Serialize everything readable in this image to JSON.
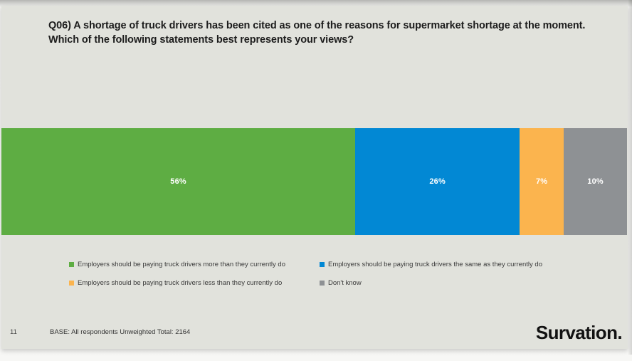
{
  "slide": {
    "title": "Q06) A shortage of truck drivers has been cited as one of the reasons for supermarket shortage at the moment. Which of the following statements best represents your views?",
    "page_number": "11",
    "base_note": "BASE: All respondents Unweighted Total: 2164",
    "logo_text": "Survation."
  },
  "colors": {
    "slide_background": "#e1e2dc",
    "bar_green": "#5ead43",
    "bar_blue": "#0288d4",
    "bar_orange": "#fbb44e",
    "bar_gray": "#8e9194",
    "value_label": "#ffffff",
    "title_text": "#1c1c1c"
  },
  "chart_data": {
    "type": "bar",
    "subtype": "stacked-horizontal-100-percent",
    "title": "Q06) A shortage of truck drivers has been cited as one of the reasons for supermarket shortage at the moment. Which of the following statements best represents your views?",
    "xlabel": "",
    "ylabel": "",
    "axis_visible": false,
    "grid": false,
    "legend_position": "below-two-columns",
    "value_labels": "inside-center-white",
    "series": [
      {
        "name": "Employers should be paying truck drivers more than they currently do",
        "value": 56,
        "label": "56%",
        "color": "#5ead43"
      },
      {
        "name": "Employers should be paying truck drivers the same as they currently do",
        "value": 26,
        "label": "26%",
        "color": "#0288d4"
      },
      {
        "name": "Employers should be paying truck drivers less than they currently do",
        "value": 7,
        "label": "7%",
        "color": "#fbb44e"
      },
      {
        "name": "Don't know",
        "value": 10,
        "label": "10%",
        "color": "#8e9194"
      }
    ]
  }
}
